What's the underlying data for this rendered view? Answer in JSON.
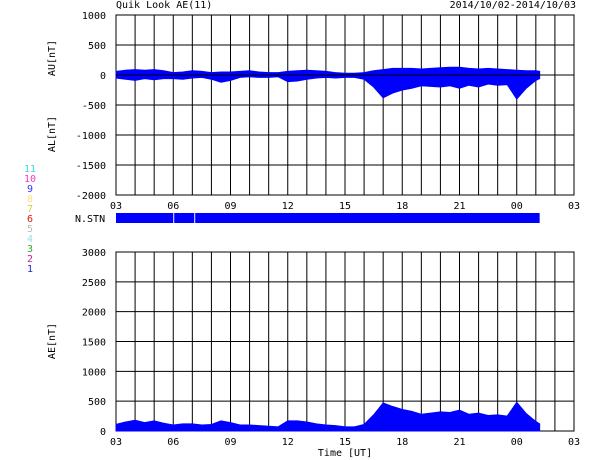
{
  "header": {
    "title": "Quik Look AE(11)",
    "date_range": "2014/10/02-2014/10/03"
  },
  "station_count_legend": [
    {
      "label": "11",
      "color": "#33dddd"
    },
    {
      "label": "10",
      "color": "#ff33cc"
    },
    {
      "label": "9",
      "color": "#3333ff"
    },
    {
      "label": "8",
      "color": "#ffdd88"
    },
    {
      "label": "7",
      "color": "#ddcc33"
    },
    {
      "label": "6",
      "color": "#ee1111"
    },
    {
      "label": "5",
      "color": "#bbbbbb"
    },
    {
      "label": "4",
      "color": "#99dddd"
    },
    {
      "label": "3",
      "color": "#33aa33"
    },
    {
      "label": "2",
      "color": "#cc2299"
    },
    {
      "label": "1",
      "color": "#2222cc"
    }
  ],
  "colors": {
    "series": "#0000ff",
    "axis": "#000000"
  },
  "chart_data": [
    {
      "type": "area",
      "name": "AU/AL panel",
      "ylabel_top": "AU[nT]",
      "ylabel_bottom": "AL[nT]",
      "ylim": [
        -2000,
        1000
      ],
      "yticks": [
        1000,
        500,
        0,
        -500,
        -1000,
        -1500,
        -2000
      ],
      "xlim": [
        3,
        27
      ],
      "xticks": [
        "03",
        "06",
        "09",
        "12",
        "15",
        "18",
        "21",
        "00",
        "03"
      ],
      "grid": true,
      "series": [
        {
          "name": "AU",
          "x": [
            3.0,
            3.5,
            4.0,
            4.5,
            5.0,
            5.5,
            6.0,
            6.5,
            7.0,
            7.5,
            8.0,
            8.5,
            9.0,
            9.5,
            10.0,
            10.5,
            11.0,
            11.5,
            12.0,
            12.5,
            13.0,
            13.5,
            14.0,
            14.5,
            15.0,
            15.5,
            16.0,
            16.5,
            17.0,
            17.5,
            18.0,
            18.5,
            19.0,
            19.5,
            20.0,
            20.5,
            21.0,
            21.5,
            22.0,
            22.5,
            23.0,
            23.5,
            24.0,
            24.5,
            25.0,
            25.2
          ],
          "y": [
            60,
            80,
            90,
            80,
            90,
            70,
            40,
            50,
            70,
            60,
            40,
            50,
            50,
            60,
            70,
            50,
            40,
            40,
            60,
            70,
            80,
            70,
            60,
            40,
            30,
            30,
            40,
            70,
            90,
            110,
            110,
            110,
            100,
            110,
            120,
            130,
            130,
            110,
            100,
            110,
            100,
            90,
            80,
            70,
            70,
            60
          ]
        },
        {
          "name": "AL",
          "x": [
            3.0,
            3.5,
            4.0,
            4.5,
            5.0,
            5.5,
            6.0,
            6.5,
            7.0,
            7.5,
            8.0,
            8.5,
            9.0,
            9.5,
            10.0,
            10.5,
            11.0,
            11.5,
            12.0,
            12.5,
            13.0,
            13.5,
            14.0,
            14.5,
            15.0,
            15.5,
            16.0,
            16.5,
            17.0,
            17.5,
            18.0,
            18.5,
            19.0,
            19.5,
            20.0,
            20.5,
            21.0,
            21.5,
            22.0,
            22.5,
            23.0,
            23.5,
            24.0,
            24.5,
            25.0,
            25.2
          ],
          "y": [
            -50,
            -70,
            -90,
            -60,
            -80,
            -60,
            -60,
            -70,
            -50,
            -40,
            -70,
            -120,
            -90,
            -40,
            -30,
            -40,
            -40,
            -30,
            -110,
            -100,
            -70,
            -50,
            -40,
            -50,
            -40,
            -40,
            -70,
            -200,
            -380,
            -300,
            -250,
            -220,
            -180,
            -190,
            -200,
            -180,
            -220,
            -170,
            -200,
            -150,
            -170,
            -160,
            -400,
            -220,
            -90,
            -60
          ]
        }
      ]
    },
    {
      "type": "bar",
      "name": "station count bar",
      "label": "N.STN",
      "xlim": [
        3,
        27
      ],
      "segments": [
        {
          "start": 3.0,
          "end": 6.0
        },
        {
          "start": 6.05,
          "end": 7.1
        },
        {
          "start": 7.15,
          "end": 25.2
        }
      ]
    },
    {
      "type": "area",
      "name": "AE panel",
      "ylabel": "AE[nT]",
      "xlabel": "Time [UT]",
      "ylim": [
        0,
        3000
      ],
      "yticks": [
        3000,
        2500,
        2000,
        1500,
        1000,
        500,
        0
      ],
      "xlim": [
        3,
        27
      ],
      "xticks": [
        "03",
        "06",
        "09",
        "12",
        "15",
        "18",
        "21",
        "00",
        "03"
      ],
      "grid": true,
      "series": [
        {
          "name": "AE",
          "x": [
            3.0,
            3.5,
            4.0,
            4.5,
            5.0,
            5.5,
            6.0,
            6.5,
            7.0,
            7.5,
            8.0,
            8.5,
            9.0,
            9.5,
            10.0,
            10.5,
            11.0,
            11.5,
            12.0,
            12.5,
            13.0,
            13.5,
            14.0,
            14.5,
            15.0,
            15.5,
            16.0,
            16.5,
            17.0,
            17.5,
            18.0,
            18.5,
            19.0,
            19.5,
            20.0,
            20.5,
            21.0,
            21.5,
            22.0,
            22.5,
            23.0,
            23.5,
            24.0,
            24.5,
            25.0,
            25.2
          ],
          "y": [
            110,
            150,
            180,
            140,
            170,
            130,
            100,
            120,
            120,
            100,
            110,
            170,
            140,
            100,
            100,
            90,
            80,
            70,
            170,
            170,
            150,
            120,
            100,
            90,
            70,
            70,
            110,
            270,
            470,
            410,
            360,
            330,
            280,
            300,
            320,
            310,
            350,
            280,
            300,
            260,
            270,
            250,
            480,
            290,
            160,
            120
          ]
        }
      ]
    }
  ]
}
